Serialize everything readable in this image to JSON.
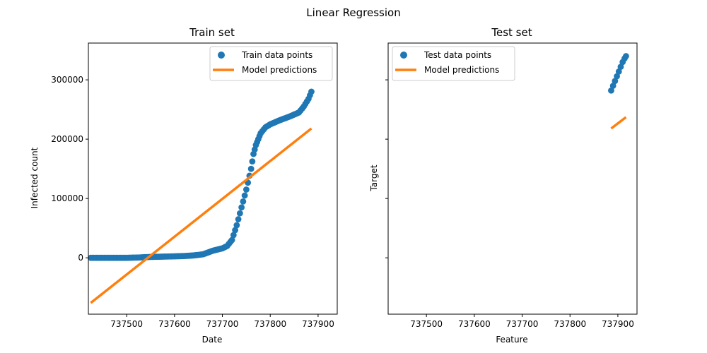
{
  "figure": {
    "suptitle": "Linear Regression"
  },
  "chart_data": [
    {
      "type": "scatter",
      "title": "Train set",
      "xlabel": "Date",
      "ylabel": "Infected count",
      "xlim": [
        737420,
        737940
      ],
      "ylim": [
        -95000,
        362000
      ],
      "xticks": [
        737500,
        737600,
        737700,
        737800,
        737900
      ],
      "xtick_labels": [
        "737500",
        "737600",
        "737700",
        "737800",
        "737900"
      ],
      "yticks": [
        0,
        100000,
        200000,
        300000
      ],
      "ytick_labels": [
        "0",
        "100000",
        "200000",
        "300000"
      ],
      "legend": "top-right",
      "series": [
        {
          "name": "Train data points",
          "kind": "scatter",
          "color": "#1f77b4",
          "x": [
            737425,
            737450,
            737475,
            737500,
            737525,
            737550,
            737575,
            737600,
            737620,
            737640,
            737660,
            737680,
            737700,
            737710,
            737720,
            737730,
            737740,
            737750,
            737760,
            737765,
            737770,
            737775,
            737780,
            737790,
            737800,
            737820,
            737840,
            737860,
            737870,
            737880,
            737886
          ],
          "y": [
            0,
            0,
            0,
            0,
            500,
            1500,
            2000,
            2500,
            3000,
            4000,
            6000,
            12000,
            16000,
            20000,
            30000,
            55000,
            85000,
            115000,
            150000,
            175000,
            190000,
            200000,
            210000,
            220000,
            225000,
            232000,
            238000,
            245000,
            255000,
            268000,
            280000
          ]
        },
        {
          "name": "Model predictions",
          "kind": "line",
          "color": "#ff7f0e",
          "x": [
            737425,
            737886
          ],
          "y": [
            -76000,
            218000
          ]
        }
      ]
    },
    {
      "type": "scatter",
      "title": "Test set",
      "xlabel": "Feature",
      "ylabel": "Target",
      "xlim": [
        737420,
        737940
      ],
      "ylim": [
        -95000,
        362000
      ],
      "xticks": [
        737500,
        737600,
        737700,
        737800,
        737900
      ],
      "xtick_labels": [
        "737500",
        "737600",
        "737700",
        "737800",
        "737900"
      ],
      "yticks": [
        0,
        100000,
        200000,
        300000
      ],
      "ytick_labels": [],
      "legend": "top-left",
      "series": [
        {
          "name": "Test data points",
          "kind": "scatter",
          "color": "#1f77b4",
          "x": [
            737886,
            737890,
            737894,
            737898,
            737902,
            737906,
            737910,
            737914,
            737917
          ],
          "y": [
            282000,
            290000,
            298000,
            306000,
            314000,
            322000,
            330000,
            336000,
            340000
          ]
        },
        {
          "name": "Model predictions",
          "kind": "line",
          "color": "#ff7f0e",
          "x": [
            737886,
            737917
          ],
          "y": [
            218000,
            237000
          ]
        }
      ]
    }
  ]
}
